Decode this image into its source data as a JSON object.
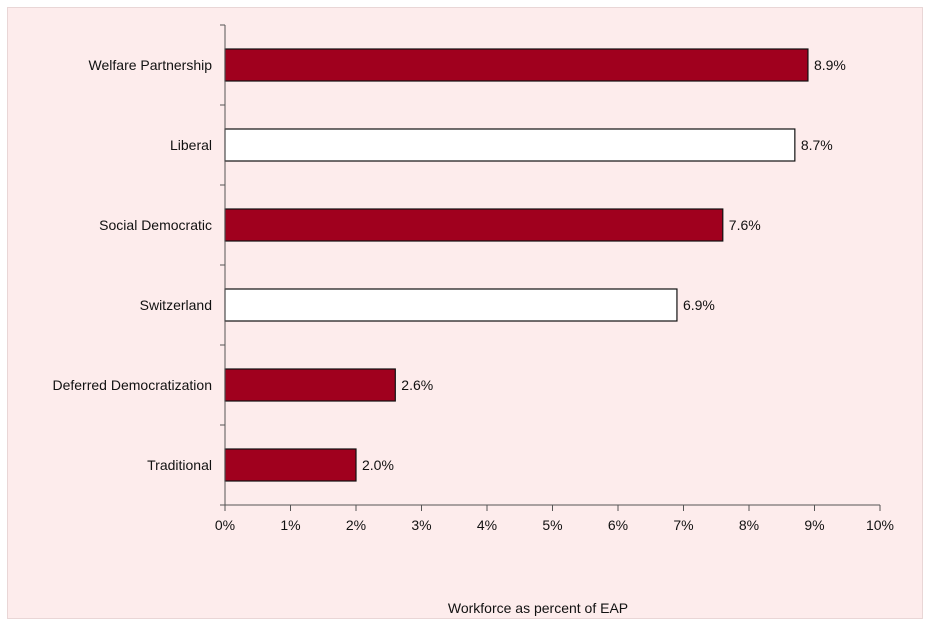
{
  "chart_data": {
    "type": "bar",
    "orientation": "horizontal",
    "categories": [
      "Welfare Partnership",
      "Liberal",
      "Social Democratic",
      "Switzerland",
      "Deferred Democratization",
      "Traditional"
    ],
    "values": [
      8.9,
      8.7,
      7.6,
      6.9,
      2.6,
      2.0
    ],
    "data_labels": [
      "8.9%",
      "8.7%",
      "7.6%",
      "6.9%",
      "2.6%",
      "2.0%"
    ],
    "bar_colors": [
      "#a0001e",
      "#ffffff",
      "#a0001e",
      "#ffffff",
      "#a0001e",
      "#a0001e"
    ],
    "xlim": [
      0,
      10
    ],
    "xticks": [
      "0%",
      "1%",
      "2%",
      "3%",
      "4%",
      "5%",
      "6%",
      "7%",
      "8%",
      "9%",
      "10%"
    ],
    "xlabel": "Workforce as percent of EAP",
    "ylabel": "",
    "grid": false,
    "legend": "none",
    "colors": {
      "background": "#fdecec",
      "accent": "#a0001e",
      "axis": "#555555"
    }
  }
}
